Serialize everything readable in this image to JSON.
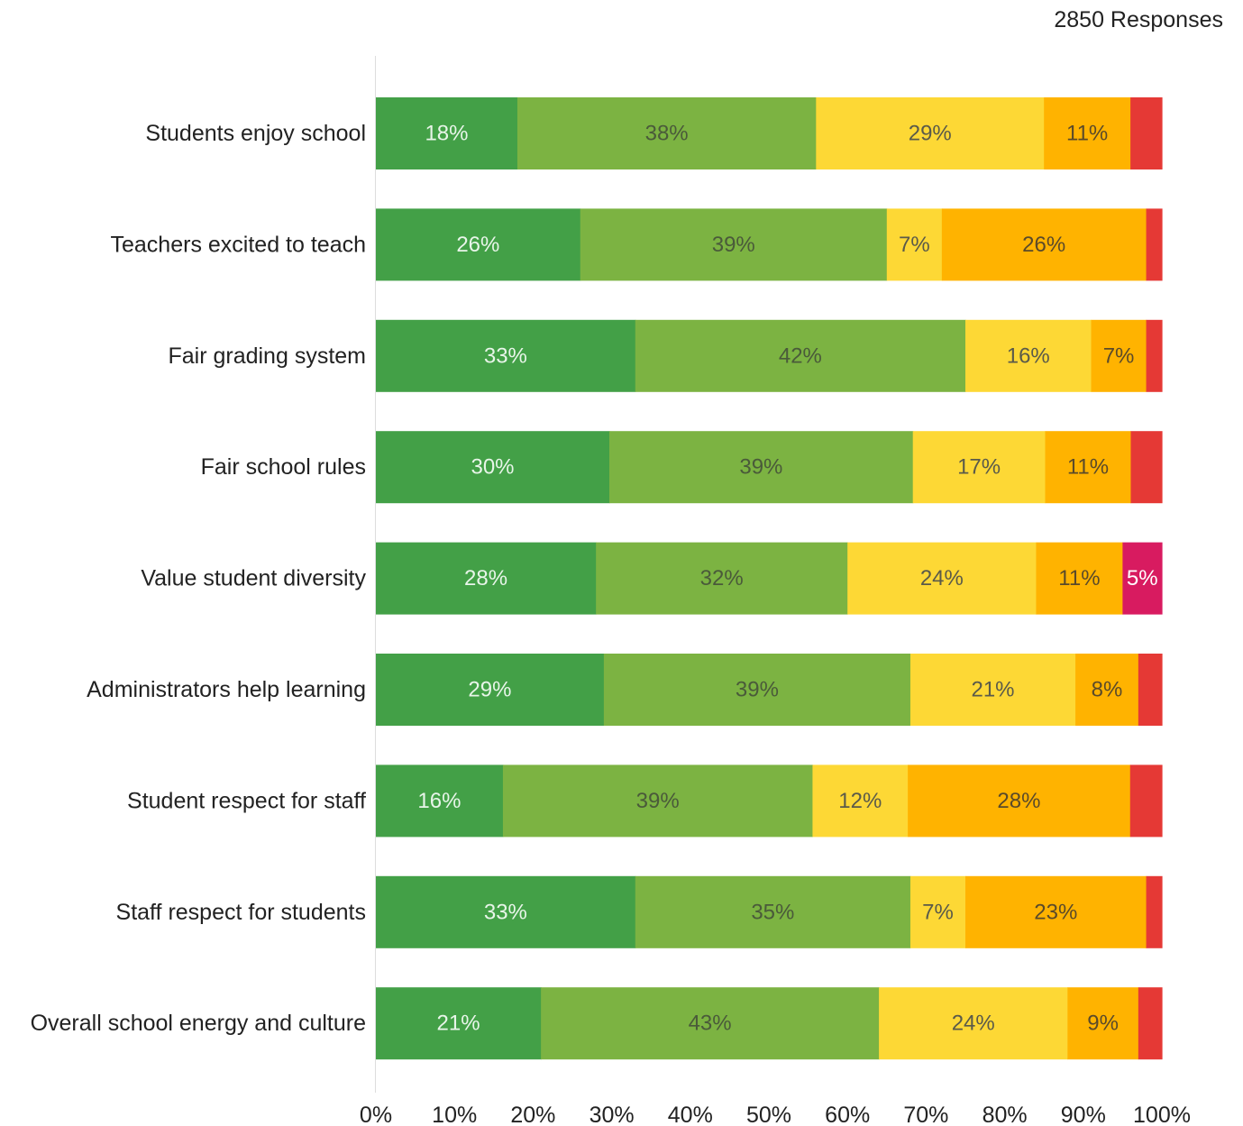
{
  "header": {
    "responses_label": "2850 Responses"
  },
  "chart_data": {
    "type": "bar",
    "orientation": "horizontal",
    "stacked": true,
    "categories": [
      "Students enjoy school",
      "Teachers excited to teach",
      "Fair grading system",
      "Fair school rules",
      "Value student diversity",
      "Administrators help learning",
      "Student respect for staff",
      "Staff respect for students",
      "Overall school energy and culture"
    ],
    "series": [
      {
        "color": "#43a047",
        "label_color": "#e8f5e9",
        "values": [
          18,
          26,
          33,
          30,
          28,
          29,
          16,
          33,
          21
        ]
      },
      {
        "color": "#7cb342",
        "label_color": "#4a5a3a",
        "values": [
          38,
          39,
          42,
          39,
          32,
          39,
          39,
          35,
          43
        ]
      },
      {
        "color": "#fdd835",
        "label_color": "#5a5a4a",
        "values": [
          29,
          7,
          16,
          17,
          24,
          21,
          12,
          7,
          24
        ]
      },
      {
        "color": "#ffb300",
        "label_color": "#5a4a2a",
        "values": [
          11,
          26,
          7,
          11,
          11,
          8,
          28,
          23,
          9
        ]
      },
      {
        "color": "#e53935",
        "label_color": "#ffffff",
        "values": [
          4,
          2,
          2,
          4,
          5,
          3,
          4,
          2,
          3
        ],
        "point_colors": [
          null,
          null,
          null,
          null,
          "#d81b60",
          null,
          null,
          null,
          null
        ]
      }
    ],
    "data_labels": [
      [
        "18%",
        "38%",
        "29%",
        "11%",
        ""
      ],
      [
        "26%",
        "39%",
        "7%",
        "26%",
        ""
      ],
      [
        "33%",
        "42%",
        "16%",
        "7%",
        ""
      ],
      [
        "30%",
        "39%",
        "17%",
        "11%",
        ""
      ],
      [
        "28%",
        "32%",
        "24%",
        "11%",
        "5%"
      ],
      [
        "29%",
        "39%",
        "21%",
        "8%",
        ""
      ],
      [
        "16%",
        "39%",
        "12%",
        "28%",
        ""
      ],
      [
        "33%",
        "35%",
        "7%",
        "23%",
        ""
      ],
      [
        "21%",
        "43%",
        "24%",
        "9%",
        ""
      ]
    ],
    "x_ticks": [
      "0%",
      "10%",
      "20%",
      "30%",
      "40%",
      "50%",
      "60%",
      "70%",
      "80%",
      "90%",
      "100%"
    ],
    "xlim": [
      0,
      100
    ],
    "xlabel": "",
    "ylabel": "",
    "grid": false,
    "legend": "none"
  }
}
